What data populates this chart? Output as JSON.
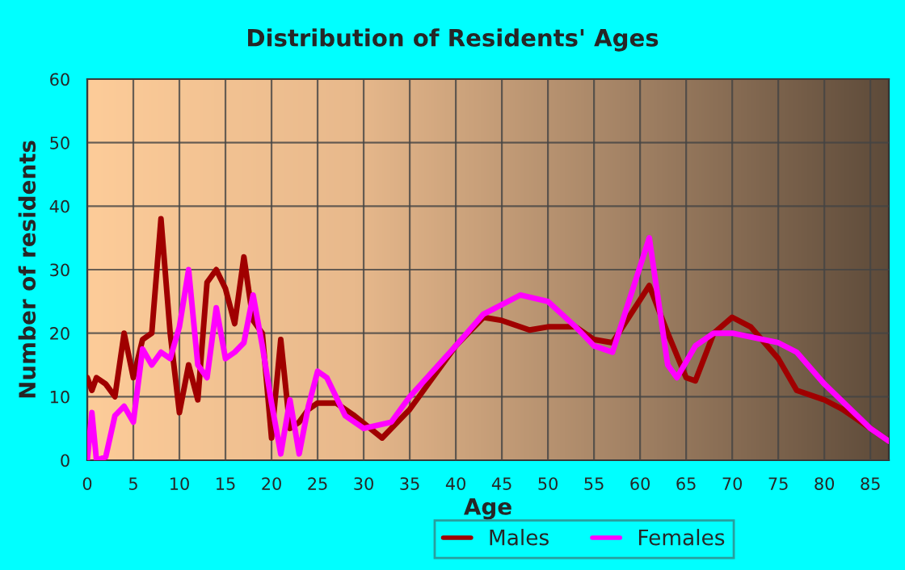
{
  "chart_data": {
    "type": "line",
    "title": "Distribution of Residents' Ages",
    "xlabel": "Age",
    "ylabel": "Number of residents",
    "xlim": [
      0,
      87
    ],
    "xticks": [
      0,
      5,
      10,
      15,
      20,
      25,
      30,
      35,
      40,
      45,
      50,
      55,
      60,
      65,
      70,
      75,
      80,
      85
    ],
    "ylim": [
      0,
      60
    ],
    "yticks": [
      0,
      10,
      20,
      30,
      40,
      50,
      60
    ],
    "grid": true,
    "legend": "bottom",
    "marker": "none",
    "line_style": "solid",
    "series": [
      {
        "name": "Males",
        "color": "#a00000",
        "x": [
          0,
          0.5,
          1,
          2,
          3,
          4,
          5,
          6,
          7,
          8,
          9,
          10,
          11,
          12,
          13,
          14,
          15,
          16,
          17,
          18,
          19,
          20,
          21,
          22,
          23,
          24,
          25,
          27,
          29,
          32,
          35,
          40,
          43,
          45,
          48,
          50,
          53,
          55,
          57,
          61,
          63,
          65,
          66,
          68,
          70,
          72,
          75,
          77,
          80,
          82,
          85,
          87
        ],
        "values": [
          13,
          11,
          13,
          12,
          10,
          20,
          13,
          19,
          20,
          38,
          20,
          7.5,
          15,
          9.5,
          28,
          30,
          27,
          21.5,
          32,
          22,
          20,
          3.5,
          19,
          5,
          6,
          8,
          9,
          9,
          7,
          3.5,
          8,
          18,
          22.5,
          22,
          20.5,
          21,
          21,
          19,
          18.5,
          27.5,
          20,
          13,
          12.5,
          20,
          22.5,
          21,
          16,
          11,
          9.5,
          8,
          5,
          3
        ]
      },
      {
        "name": "Females",
        "color": "#ff00ff",
        "x": [
          0,
          0.5,
          1,
          2,
          3,
          4,
          5,
          6,
          7,
          8,
          9,
          10,
          11,
          12,
          13,
          14,
          15,
          16,
          17,
          18,
          19,
          20,
          21,
          22,
          23,
          24,
          25,
          26,
          28,
          30,
          33,
          35,
          40,
          43,
          47,
          50,
          53,
          55,
          57,
          61,
          63,
          64,
          66,
          68,
          70,
          75,
          77,
          80,
          85,
          87
        ],
        "values": [
          0,
          7.5,
          0,
          0.5,
          7,
          8.5,
          6,
          17.5,
          15,
          17,
          16,
          21,
          30,
          15,
          13,
          24,
          16,
          17,
          18.5,
          26,
          18,
          9,
          1,
          9.5,
          1,
          8.5,
          14,
          13,
          7,
          5,
          6,
          10,
          18,
          23,
          26,
          25,
          21,
          18,
          17,
          35,
          15,
          13,
          18,
          20,
          20,
          18.5,
          17,
          12,
          5,
          3
        ]
      }
    ]
  }
}
